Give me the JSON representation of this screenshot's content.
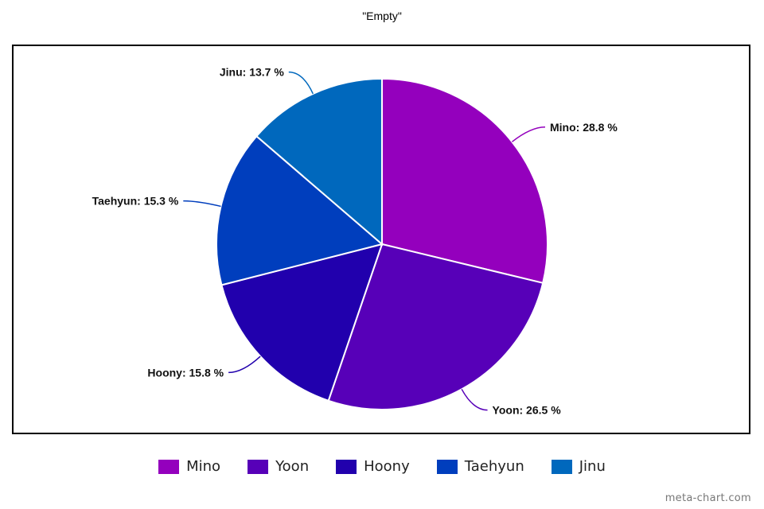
{
  "chart_data": {
    "type": "pie",
    "title": "\"Empty\"",
    "slices": [
      {
        "name": "Mino",
        "value": 28.8,
        "label": "Mino: 28.8 %",
        "color": "#9400bd"
      },
      {
        "name": "Yoon",
        "value": 26.5,
        "label": "Yoon: 26.5 %",
        "color": "#5700b8"
      },
      {
        "name": "Hoony",
        "value": 15.8,
        "label": "Hoony: 15.8 %",
        "color": "#2100ad"
      },
      {
        "name": "Taehyun",
        "value": 15.3,
        "label": "Taehyun: 15.3 %",
        "color": "#003ebd"
      },
      {
        "name": "Jinu",
        "value": 13.7,
        "label": "Jinu: 13.7 %",
        "color": "#0068bd"
      }
    ],
    "legend_placement": "bottom"
  },
  "legend": [
    "Mino",
    "Yoon",
    "Hoony",
    "Taehyun",
    "Jinu"
  ],
  "watermark": "meta-chart.com"
}
